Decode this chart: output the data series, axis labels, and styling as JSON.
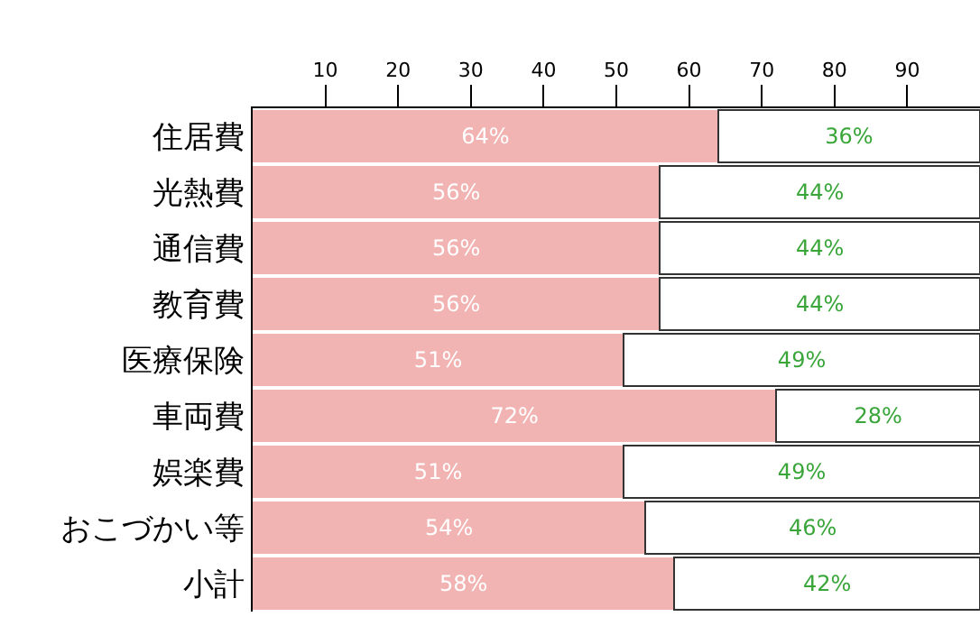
{
  "chart_data": {
    "type": "bar",
    "orientation": "horizontal",
    "stacked": true,
    "categories": [
      "住居費",
      "光熱費",
      "通信費",
      "教育費",
      "医療保険",
      "車両費",
      "娯楽費",
      "おこづかい等",
      "小計"
    ],
    "series": [
      {
        "color": "#f2b3b3",
        "values": [
          64,
          56,
          56,
          56,
          51,
          72,
          51,
          54,
          58
        ],
        "value_labels": [
          "64%",
          "56%",
          "56%",
          "56%",
          "51%",
          "72%",
          "51%",
          "54%",
          "58%"
        ]
      },
      {
        "color": "#ffffff",
        "values": [
          36,
          44,
          44,
          44,
          49,
          28,
          49,
          46,
          42
        ],
        "value_labels": [
          "36%",
          "44%",
          "44%",
          "44%",
          "49%",
          "28%",
          "49%",
          "46%",
          "42%"
        ]
      }
    ],
    "xlim": [
      0,
      100
    ],
    "xticks": [
      10,
      20,
      30,
      40,
      50,
      60,
      70,
      80,
      90
    ],
    "legend": false
  }
}
